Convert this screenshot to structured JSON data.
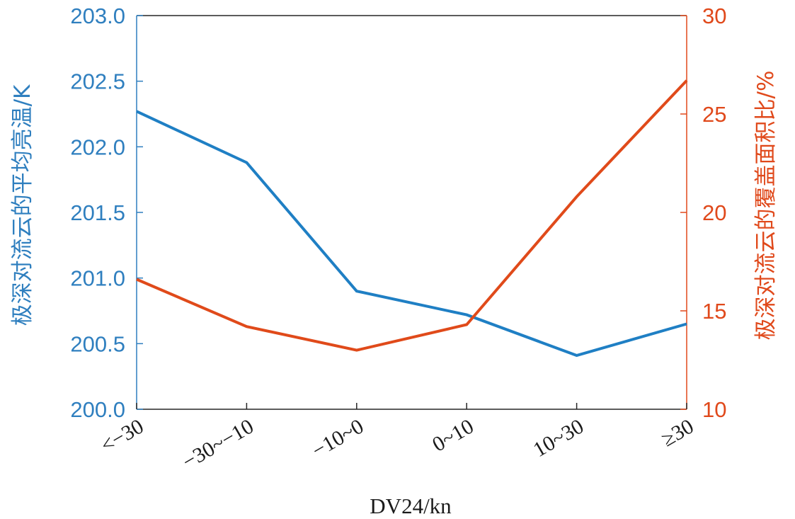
{
  "chart_data": {
    "type": "line",
    "categories": [
      "<−30",
      "−30~−10",
      "−10~0",
      "0~10",
      "10~30",
      "≥30"
    ],
    "xlabel": "DV24/kn",
    "y_left": {
      "label": "极深对流云的平均亮温/K",
      "lim": [
        200.0,
        203.0
      ],
      "ticks": [
        "200.0",
        "200.5",
        "201.0",
        "201.5",
        "202.0",
        "202.5",
        "203.0"
      ],
      "color": "#2f7fbf"
    },
    "y_right": {
      "label": "极深对流云的覆盖面积比/%",
      "lim": [
        10,
        30
      ],
      "ticks": [
        "10",
        "15",
        "20",
        "25",
        "30"
      ],
      "color": "#e0491b"
    },
    "series": [
      {
        "axis": "left",
        "color": "#1f7fc4",
        "values": [
          202.27,
          201.88,
          200.9,
          200.72,
          200.41,
          200.65
        ]
      },
      {
        "axis": "right",
        "color": "#e04a1a",
        "values": [
          16.6,
          14.2,
          13.0,
          14.3,
          20.8,
          26.7
        ]
      }
    ]
  }
}
